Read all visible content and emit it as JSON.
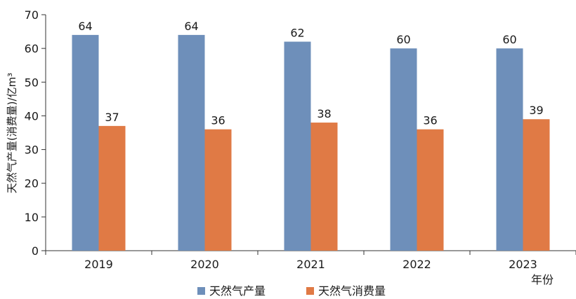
{
  "chart_data": {
    "type": "bar",
    "categories": [
      "2019",
      "2020",
      "2021",
      "2022",
      "2023"
    ],
    "series": [
      {
        "name": "天然气产量",
        "values": [
          64,
          64,
          62,
          60,
          60
        ],
        "color": "#6e8fba"
      },
      {
        "name": "天然气消费量",
        "values": [
          37,
          36,
          38,
          36,
          39
        ],
        "color": "#e07a45"
      }
    ],
    "ylim": [
      0,
      70
    ],
    "yticks": [
      0,
      10,
      20,
      30,
      40,
      50,
      60,
      70
    ],
    "ylabel": "天然气产量(消费量)/亿m³",
    "xlabel": "年份",
    "grid": false,
    "legend": "bottom"
  }
}
